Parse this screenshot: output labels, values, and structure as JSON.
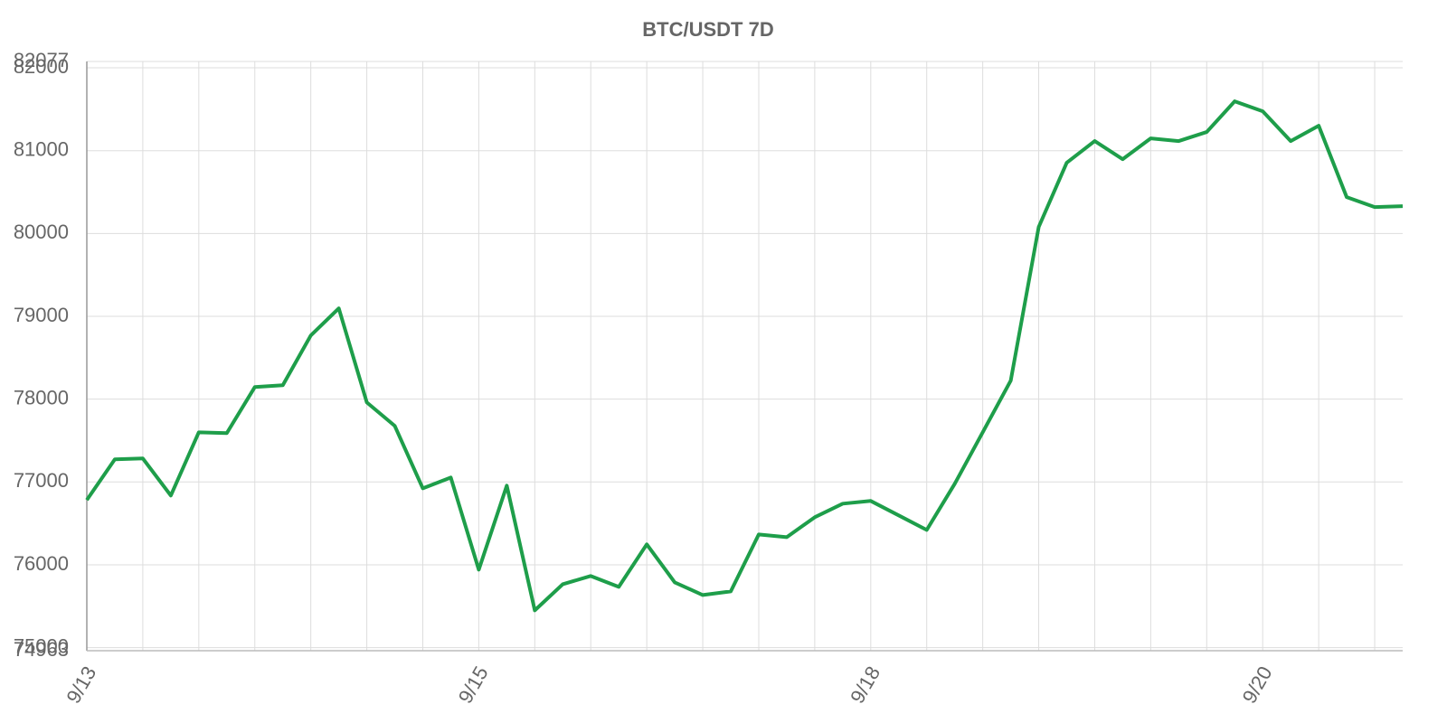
{
  "chart_data": {
    "type": "line",
    "title": "BTC/USDT 7D",
    "categories": [
      "9/13",
      null,
      null,
      null,
      null,
      null,
      null,
      null,
      null,
      null,
      null,
      null,
      null,
      null,
      "9/15",
      null,
      null,
      null,
      null,
      null,
      null,
      null,
      null,
      null,
      null,
      null,
      null,
      null,
      "9/18",
      null,
      null,
      null,
      null,
      null,
      null,
      null,
      null,
      null,
      null,
      null,
      null,
      null,
      "9/20",
      null,
      null,
      null,
      null,
      null
    ],
    "series": [
      {
        "name": "BTC/USDT",
        "color": "#1e9e4a",
        "values": [
          76782,
          77273,
          77284,
          76836,
          77600,
          77590,
          78146,
          78168,
          78769,
          79096,
          77961,
          77677,
          76923,
          77054,
          75941,
          76956,
          75450,
          75766,
          75865,
          75734,
          76247,
          75788,
          75635,
          75679,
          76367,
          76334,
          76574,
          76738,
          76771,
          76596,
          76421,
          76978,
          77600,
          78223,
          80079,
          80854,
          81116,
          80897,
          81148,
          81116,
          81225,
          81596,
          81476,
          81116,
          81301,
          80439,
          80319,
          80330
        ]
      }
    ],
    "ylim": [
      74963,
      82077
    ],
    "yticks": [
      74963,
      75000,
      76000,
      77000,
      78000,
      79000,
      80000,
      81000,
      82000,
      82077
    ],
    "grid": true
  }
}
